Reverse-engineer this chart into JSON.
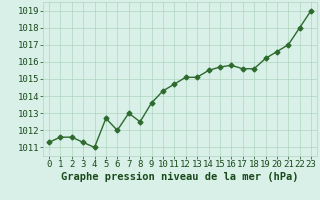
{
  "x": [
    0,
    1,
    2,
    3,
    4,
    5,
    6,
    7,
    8,
    9,
    10,
    11,
    12,
    13,
    14,
    15,
    16,
    17,
    18,
    19,
    20,
    21,
    22,
    23
  ],
  "y": [
    1011.3,
    1011.6,
    1011.6,
    1011.3,
    1011.0,
    1012.7,
    1012.0,
    1013.0,
    1012.5,
    1013.6,
    1014.3,
    1014.7,
    1015.1,
    1015.1,
    1015.5,
    1015.7,
    1015.8,
    1015.6,
    1015.6,
    1016.2,
    1016.6,
    1017.0,
    1018.0,
    1019.0
  ],
  "line_color": "#2d6a2d",
  "marker": "D",
  "marker_size": 2.5,
  "bg_color": "#d8f0e8",
  "grid_color": "#b0d4c0",
  "xlabel": "Graphe pression niveau de la mer (hPa)",
  "xlabel_fontsize": 7.5,
  "ylabel_ticks": [
    1011,
    1012,
    1013,
    1014,
    1015,
    1016,
    1017,
    1018,
    1019
  ],
  "xlim": [
    -0.5,
    23.5
  ],
  "ylim": [
    1010.5,
    1019.5
  ],
  "title_color": "#1a4a1a",
  "tick_fontsize": 6.5,
  "line_width": 1.0
}
